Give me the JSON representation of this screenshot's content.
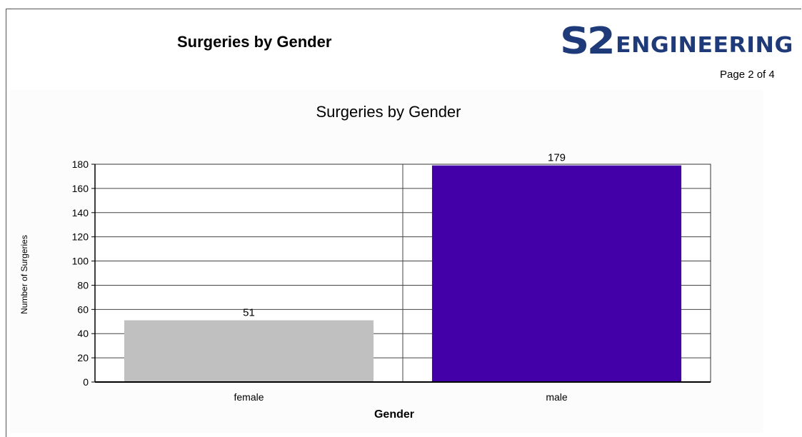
{
  "report": {
    "title": "Surgeries by Gender",
    "page_label": "Page 2 of 4"
  },
  "logo": {
    "part1": "S2",
    "part2": "ENGINEERING",
    "color": "#1e3a78"
  },
  "chart_data": {
    "type": "bar",
    "title": "Surgeries by Gender",
    "categories": [
      "female",
      "male"
    ],
    "values": [
      51,
      179
    ],
    "colors": [
      "#c0c0c0",
      "#4400a8"
    ],
    "xlabel": "Gender",
    "ylabel": "Number of Surgeries",
    "ylim": [
      0,
      180
    ],
    "yticks": [
      0,
      20,
      40,
      60,
      80,
      100,
      120,
      140,
      160,
      180
    ],
    "data_labels": true,
    "grid": true,
    "legend": "none"
  }
}
